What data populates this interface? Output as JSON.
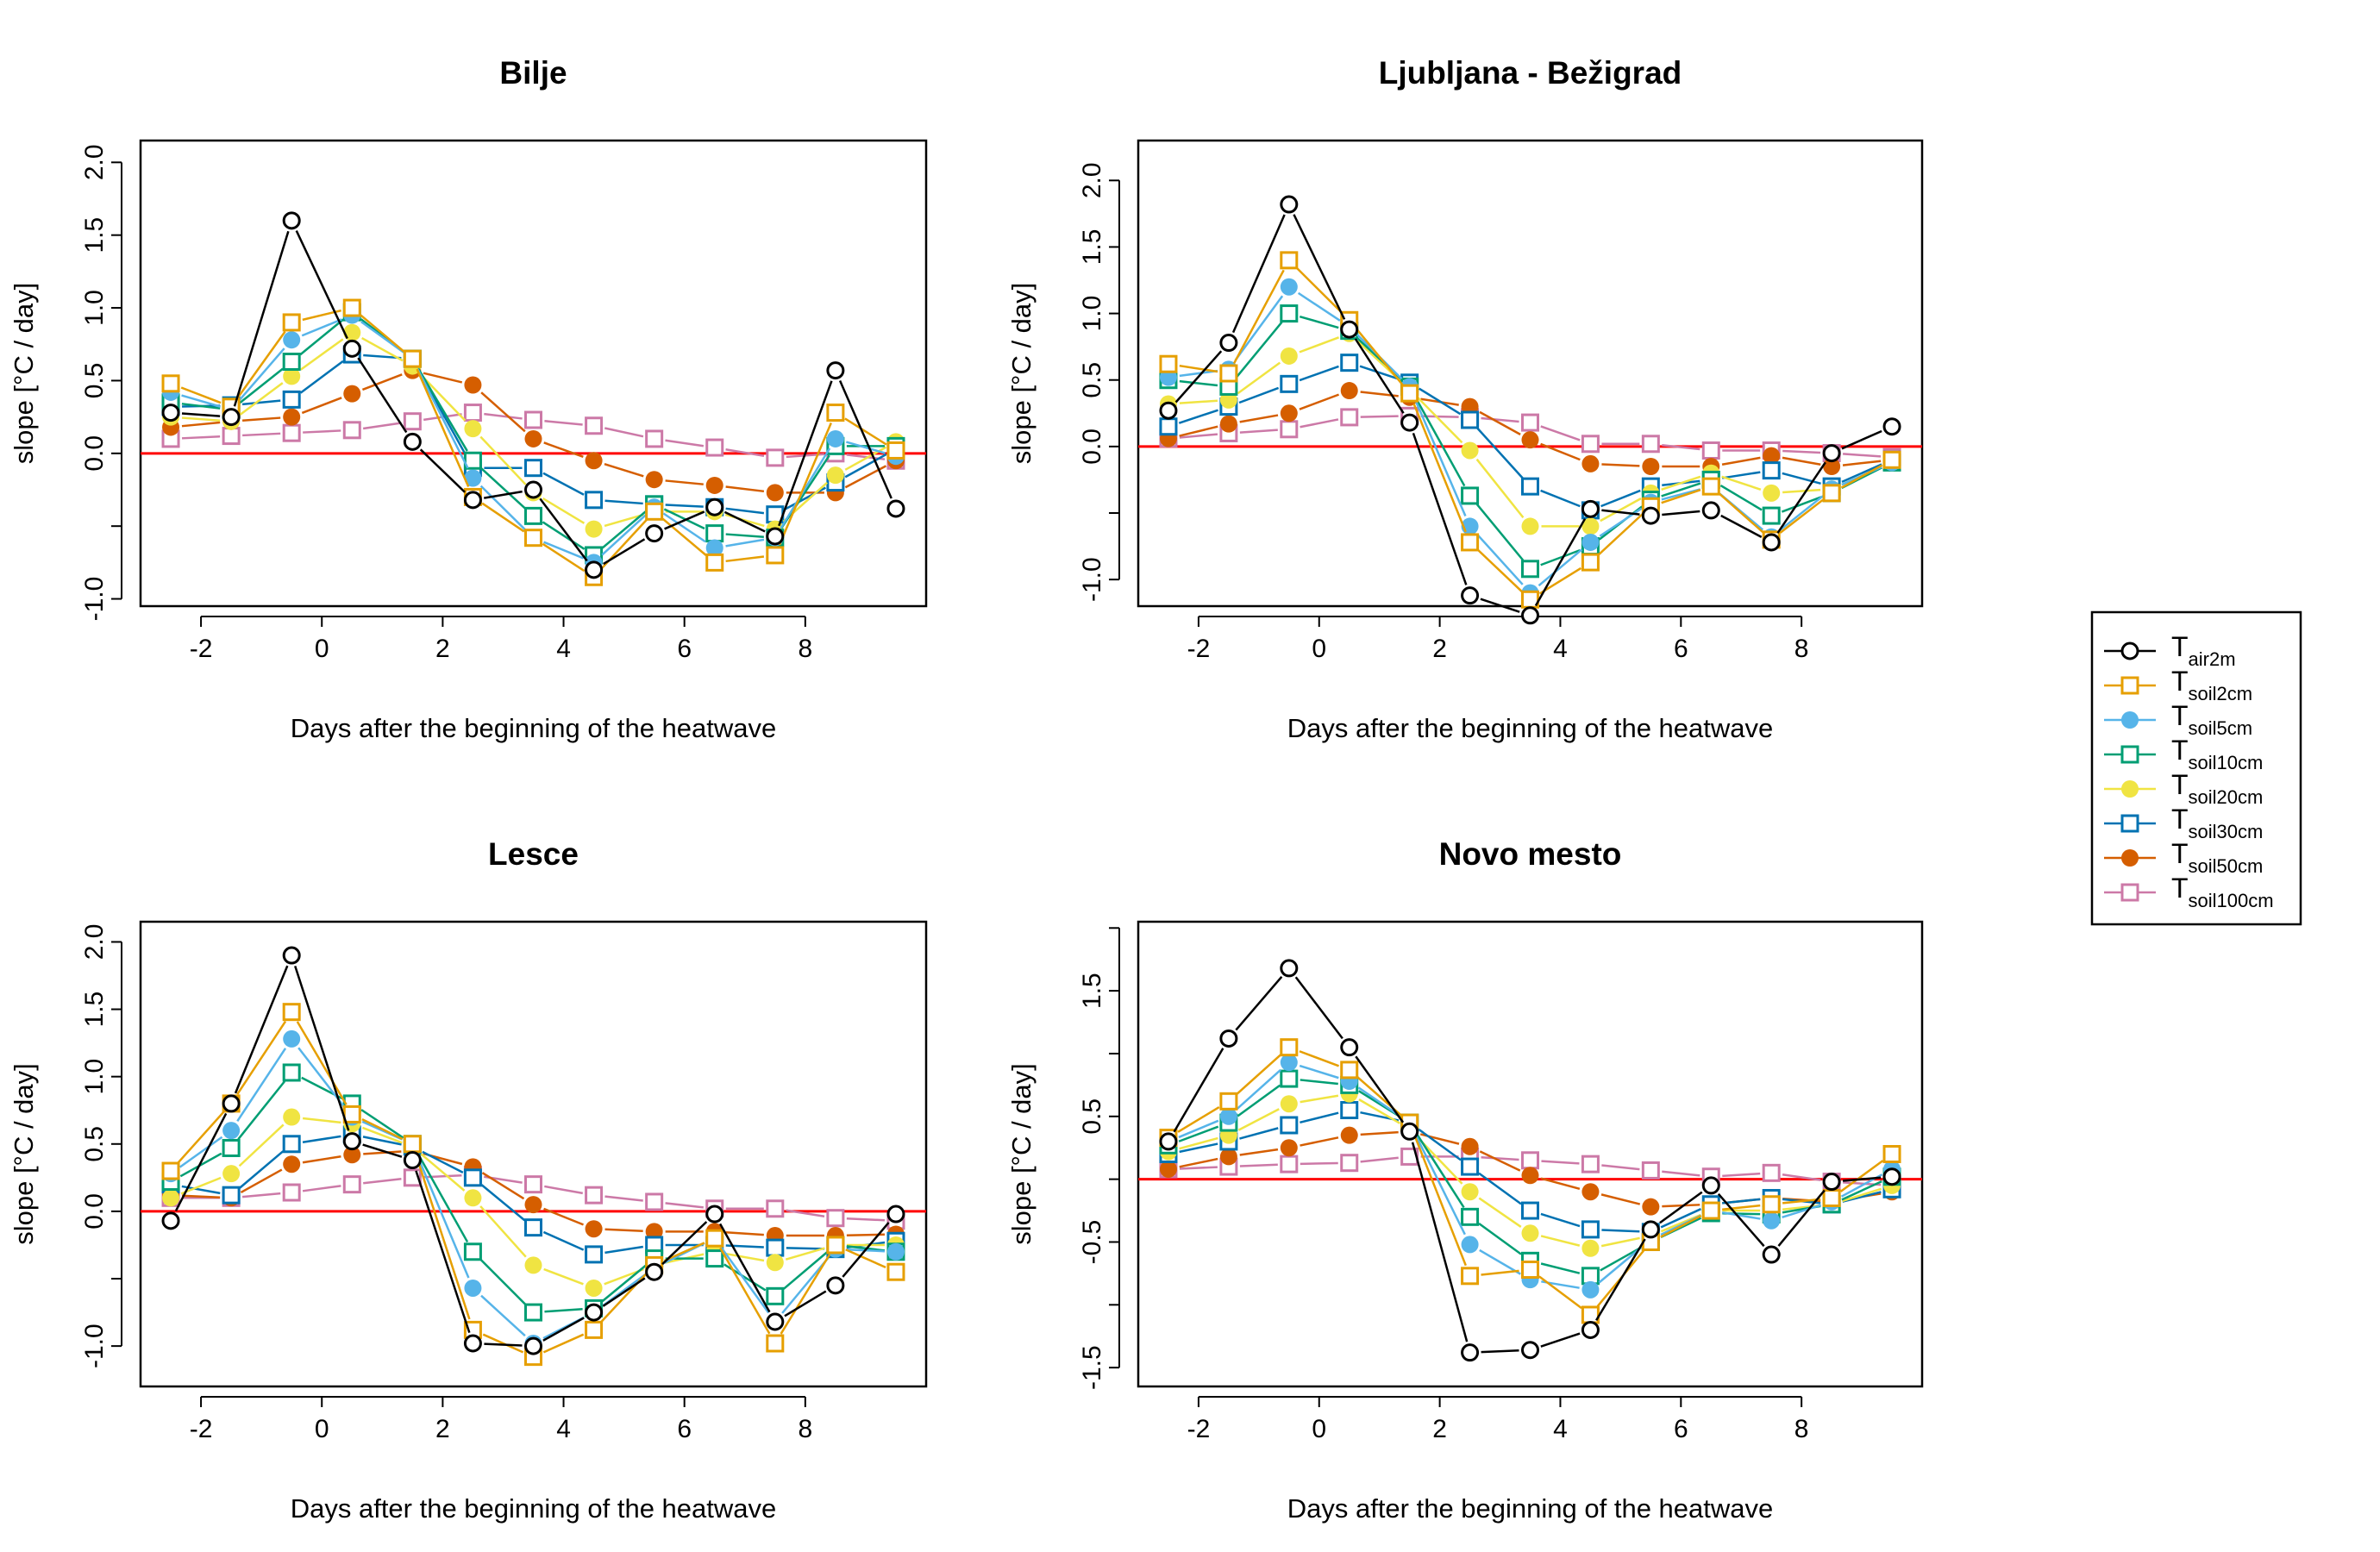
{
  "chart_data": [
    {
      "type": "line",
      "title": "Bilje",
      "xlabel": "Days after the beginning of the heatwave",
      "ylabel": "slope [°C / day]",
      "xlim": [
        -3,
        10
      ],
      "ylim": [
        -1.05,
        2.15
      ],
      "xticks": [
        -2,
        0,
        2,
        4,
        6,
        8
      ],
      "yticks": [
        -1.0,
        -0.5,
        0.0,
        0.5,
        1.0,
        1.5,
        2.0
      ],
      "ytick_labels": [
        "-1.0",
        "",
        "0.0",
        "0.5",
        "1.0",
        "1.5",
        "2.0"
      ],
      "reference_line": 0,
      "x": [
        -2.5,
        -1.5,
        -0.5,
        0.5,
        1.5,
        2.5,
        3.5,
        4.5,
        5.5,
        6.5,
        7.5,
        8.5,
        9.5
      ],
      "series": [
        {
          "name": "air2m",
          "values": [
            0.28,
            0.25,
            1.6,
            0.72,
            0.08,
            -0.32,
            -0.25,
            -0.8,
            -0.55,
            -0.37,
            -0.57,
            0.57,
            -0.38
          ]
        },
        {
          "name": "soil2cm",
          "values": [
            0.48,
            0.32,
            0.9,
            1.0,
            0.65,
            -0.3,
            -0.58,
            -0.85,
            -0.4,
            -0.75,
            -0.7,
            0.28,
            0.02
          ]
        },
        {
          "name": "soil5cm",
          "values": [
            0.42,
            0.3,
            0.78,
            0.95,
            0.65,
            -0.17,
            -0.58,
            -0.75,
            -0.37,
            -0.65,
            -0.58,
            0.1,
            -0.02
          ]
        },
        {
          "name": "soil10cm",
          "values": [
            0.35,
            0.3,
            0.63,
            0.97,
            0.65,
            -0.05,
            -0.43,
            -0.7,
            -0.35,
            -0.55,
            -0.58,
            0.05,
            0.05
          ]
        },
        {
          "name": "soil20cm",
          "values": [
            0.25,
            0.22,
            0.53,
            0.83,
            0.6,
            0.17,
            -0.27,
            -0.52,
            -0.4,
            -0.4,
            -0.52,
            -0.15,
            0.08
          ]
        },
        {
          "name": "soil30cm",
          "values": [
            0.32,
            0.33,
            0.37,
            0.68,
            0.65,
            -0.1,
            -0.1,
            -0.32,
            -0.35,
            -0.37,
            -0.42,
            -0.2,
            0.03
          ]
        },
        {
          "name": "soil50cm",
          "values": [
            0.18,
            0.22,
            0.25,
            0.41,
            0.57,
            0.47,
            0.1,
            -0.05,
            -0.18,
            -0.22,
            -0.27,
            -0.27,
            -0.05
          ]
        },
        {
          "name": "soil100cm",
          "values": [
            0.1,
            0.12,
            0.14,
            0.16,
            0.22,
            0.28,
            0.23,
            0.19,
            0.1,
            0.04,
            -0.03,
            0.0,
            -0.05
          ]
        }
      ]
    },
    {
      "type": "line",
      "title": "Ljubljana - Bežigrad",
      "xlabel": "Days after the beginning of the heatwave",
      "ylabel": "slope [°C / day]",
      "xlim": [
        -3,
        10
      ],
      "ylim": [
        -1.2,
        2.3
      ],
      "xticks": [
        -2,
        0,
        2,
        4,
        6,
        8
      ],
      "yticks": [
        -1.0,
        -0.5,
        0.0,
        0.5,
        1.0,
        1.5,
        2.0
      ],
      "ytick_labels": [
        "-1.0",
        "",
        "0.0",
        "0.5",
        "1.0",
        "1.5",
        "2.0"
      ],
      "reference_line": 0,
      "x": [
        -2.5,
        -1.5,
        -0.5,
        0.5,
        1.5,
        2.5,
        3.5,
        4.5,
        5.5,
        6.5,
        7.5,
        8.5,
        9.5
      ],
      "series": [
        {
          "name": "air2m",
          "values": [
            0.27,
            0.78,
            1.82,
            0.88,
            0.18,
            -1.12,
            -1.27,
            -0.47,
            -0.52,
            -0.48,
            -0.72,
            -0.05,
            0.15
          ]
        },
        {
          "name": "soil2cm",
          "values": [
            0.62,
            0.55,
            1.4,
            0.95,
            0.4,
            -0.72,
            -1.15,
            -0.87,
            -0.45,
            -0.3,
            -0.7,
            -0.35,
            -0.1
          ]
        },
        {
          "name": "soil5cm",
          "values": [
            0.52,
            0.58,
            1.2,
            0.9,
            0.45,
            -0.6,
            -1.1,
            -0.72,
            -0.42,
            -0.3,
            -0.68,
            -0.32,
            -0.12
          ]
        },
        {
          "name": "soil10cm",
          "values": [
            0.5,
            0.45,
            1.0,
            0.87,
            0.45,
            -0.37,
            -0.92,
            -0.75,
            -0.4,
            -0.25,
            -0.52,
            -0.35,
            -0.12
          ]
        },
        {
          "name": "soil20cm",
          "values": [
            0.32,
            0.35,
            0.68,
            0.85,
            0.43,
            -0.03,
            -0.6,
            -0.6,
            -0.35,
            -0.2,
            -0.35,
            -0.32,
            -0.12
          ]
        },
        {
          "name": "soil30cm",
          "values": [
            0.15,
            0.3,
            0.47,
            0.63,
            0.48,
            0.2,
            -0.3,
            -0.48,
            -0.3,
            -0.25,
            -0.18,
            -0.3,
            -0.1
          ]
        },
        {
          "name": "soil50cm",
          "values": [
            0.06,
            0.17,
            0.25,
            0.42,
            0.37,
            0.3,
            0.05,
            -0.13,
            -0.15,
            -0.15,
            -0.07,
            -0.15,
            -0.1
          ]
        },
        {
          "name": "soil100cm",
          "values": [
            0.06,
            0.1,
            0.13,
            0.22,
            0.23,
            0.22,
            0.18,
            0.02,
            0.02,
            -0.03,
            -0.03,
            -0.05,
            -0.08
          ]
        }
      ]
    },
    {
      "type": "line",
      "title": "Lesce",
      "xlabel": "Days after the beginning of the heatwave",
      "ylabel": "slope [°C / day]",
      "xlim": [
        -3,
        10
      ],
      "ylim": [
        -1.3,
        2.15
      ],
      "xticks": [
        -2,
        0,
        2,
        4,
        6,
        8
      ],
      "yticks": [
        -1.0,
        -0.5,
        0.0,
        0.5,
        1.0,
        1.5,
        2.0
      ],
      "ytick_labels": [
        "-1.0",
        "",
        "0.0",
        "0.5",
        "1.0",
        "1.5",
        "2.0"
      ],
      "reference_line": 0,
      "x": [
        -2.5,
        -1.5,
        -0.5,
        0.5,
        1.5,
        2.5,
        3.5,
        4.5,
        5.5,
        6.5,
        7.5,
        8.5,
        9.5
      ],
      "series": [
        {
          "name": "air2m",
          "values": [
            -0.07,
            0.8,
            1.9,
            0.52,
            0.38,
            -0.98,
            -1.0,
            -0.75,
            -0.45,
            -0.02,
            -0.82,
            -0.55,
            -0.02
          ]
        },
        {
          "name": "soil2cm",
          "values": [
            0.3,
            0.8,
            1.48,
            0.72,
            0.5,
            -0.88,
            -1.08,
            -0.88,
            -0.4,
            -0.2,
            -0.98,
            -0.25,
            -0.45
          ]
        },
        {
          "name": "soil5cm",
          "values": [
            0.28,
            0.6,
            1.28,
            0.7,
            0.5,
            -0.57,
            -0.98,
            -0.75,
            -0.42,
            -0.2,
            -0.82,
            -0.28,
            -0.3
          ]
        },
        {
          "name": "soil10cm",
          "values": [
            0.22,
            0.47,
            1.03,
            0.8,
            0.5,
            -0.3,
            -0.75,
            -0.72,
            -0.35,
            -0.35,
            -0.63,
            -0.25,
            -0.3
          ]
        },
        {
          "name": "soil20cm",
          "values": [
            0.1,
            0.28,
            0.7,
            0.65,
            0.48,
            0.1,
            -0.4,
            -0.57,
            -0.4,
            -0.3,
            -0.38,
            -0.25,
            -0.25
          ]
        },
        {
          "name": "soil30cm",
          "values": [
            0.2,
            0.12,
            0.5,
            0.57,
            0.48,
            0.25,
            -0.12,
            -0.32,
            -0.25,
            -0.25,
            -0.27,
            -0.28,
            -0.22
          ]
        },
        {
          "name": "soil50cm",
          "values": [
            0.12,
            0.1,
            0.35,
            0.42,
            0.45,
            0.33,
            0.05,
            -0.13,
            -0.15,
            -0.15,
            -0.18,
            -0.18,
            -0.17
          ]
        },
        {
          "name": "soil100cm",
          "values": [
            0.1,
            0.1,
            0.14,
            0.2,
            0.25,
            0.27,
            0.2,
            0.12,
            0.07,
            0.02,
            0.02,
            -0.05,
            -0.07
          ]
        }
      ]
    },
    {
      "type": "line",
      "title": "Novo mesto",
      "xlabel": "Days after the beginning of the heatwave",
      "ylabel": "slope [°C / day]",
      "xlim": [
        -3,
        10
      ],
      "ylim": [
        -1.65,
        2.05
      ],
      "xticks": [
        -2,
        0,
        2,
        4,
        6,
        8
      ],
      "yticks": [
        -1.5,
        -1.0,
        -0.5,
        0.0,
        0.5,
        1.0,
        1.5,
        2.0
      ],
      "ytick_labels": [
        "-1.5",
        "",
        "-0.5",
        "",
        "0.5",
        "",
        "1.5",
        ""
      ],
      "reference_line": 0,
      "x": [
        -2.5,
        -1.5,
        -0.5,
        0.5,
        1.5,
        2.5,
        3.5,
        4.5,
        5.5,
        6.5,
        7.5,
        8.5,
        9.5
      ],
      "series": [
        {
          "name": "air2m",
          "values": [
            0.3,
            1.12,
            1.68,
            1.05,
            0.38,
            -1.38,
            -1.36,
            -1.2,
            -0.4,
            -0.05,
            -0.6,
            -0.02,
            0.02
          ]
        },
        {
          "name": "soil2cm",
          "values": [
            0.33,
            0.62,
            1.05,
            0.87,
            0.45,
            -0.77,
            -0.72,
            -1.08,
            -0.5,
            -0.25,
            -0.2,
            -0.15,
            0.2
          ]
        },
        {
          "name": "soil5cm",
          "values": [
            0.3,
            0.5,
            0.93,
            0.78,
            0.45,
            -0.52,
            -0.8,
            -0.88,
            -0.48,
            -0.25,
            -0.33,
            -0.18,
            0.08
          ]
        },
        {
          "name": "soil10cm",
          "values": [
            0.27,
            0.45,
            0.8,
            0.75,
            0.45,
            -0.3,
            -0.65,
            -0.77,
            -0.5,
            -0.27,
            -0.28,
            -0.2,
            0.02
          ]
        },
        {
          "name": "soil20cm",
          "values": [
            0.22,
            0.35,
            0.6,
            0.68,
            0.4,
            -0.1,
            -0.43,
            -0.55,
            -0.45,
            -0.25,
            -0.25,
            -0.2,
            -0.05
          ]
        },
        {
          "name": "soil30cm",
          "values": [
            0.2,
            0.3,
            0.43,
            0.55,
            0.45,
            0.1,
            -0.25,
            -0.4,
            -0.42,
            -0.2,
            -0.15,
            -0.2,
            -0.08
          ]
        },
        {
          "name": "soil50cm",
          "values": [
            0.08,
            0.18,
            0.25,
            0.35,
            0.38,
            0.26,
            0.03,
            -0.1,
            -0.22,
            -0.2,
            -0.15,
            -0.18,
            -0.1
          ]
        },
        {
          "name": "soil100cm",
          "values": [
            0.08,
            0.1,
            0.12,
            0.13,
            0.18,
            0.18,
            0.15,
            0.12,
            0.07,
            0.02,
            0.05,
            -0.02,
            -0.05
          ]
        }
      ]
    }
  ],
  "legend": {
    "placement": "right",
    "entries": [
      {
        "key": "air2m",
        "main": "T",
        "sub": "air2m",
        "color": "#000000",
        "marker": "open-circle"
      },
      {
        "key": "soil2cm",
        "main": "T",
        "sub": "soil2cm",
        "color": "#E69F00",
        "marker": "open-square"
      },
      {
        "key": "soil5cm",
        "main": "T",
        "sub": "soil5cm",
        "color": "#56B4E9",
        "marker": "filled-circle"
      },
      {
        "key": "soil10cm",
        "main": "T",
        "sub": "soil10cm",
        "color": "#009E73",
        "marker": "open-square"
      },
      {
        "key": "soil20cm",
        "main": "T",
        "sub": "soil20cm",
        "color": "#F0E442",
        "marker": "filled-circle"
      },
      {
        "key": "soil30cm",
        "main": "T",
        "sub": "soil30cm",
        "color": "#0072B2",
        "marker": "open-square"
      },
      {
        "key": "soil50cm",
        "main": "T",
        "sub": "soil50cm",
        "color": "#D55E00",
        "marker": "filled-circle"
      },
      {
        "key": "soil100cm",
        "main": "T",
        "sub": "soil100cm",
        "color": "#CC79A7",
        "marker": "open-square"
      }
    ]
  },
  "colors": {
    "reference_line": "#FF0000",
    "frame": "#000000"
  }
}
